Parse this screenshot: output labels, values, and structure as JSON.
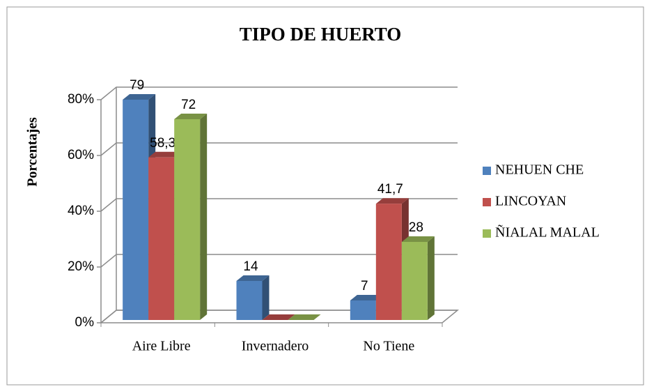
{
  "chart_data": {
    "type": "bar3d",
    "title": "TIPO DE HUERTO",
    "y_label": "Porcentajes",
    "categories": [
      "Aire Libre",
      "Invernadero",
      "No Tiene"
    ],
    "series": [
      {
        "name": "NEHUEN CHE",
        "color": "#4f81bd",
        "values": [
          79,
          14,
          7
        ],
        "value_labels": [
          "79",
          "14",
          "7"
        ]
      },
      {
        "name": "LINCOYAN",
        "color": "#c0504d",
        "values": [
          58.3,
          0,
          41.7
        ],
        "value_labels": [
          "58,3",
          null,
          "41,7"
        ]
      },
      {
        "name": "ÑIALAL MALAL",
        "color": "#9bbb59",
        "values": [
          72,
          0,
          28
        ],
        "value_labels": [
          "72",
          null,
          "28"
        ]
      }
    ],
    "ylim": [
      0,
      80
    ],
    "yticks": [
      {
        "value": 0,
        "label": "0%"
      },
      {
        "value": 20,
        "label": "20%"
      },
      {
        "value": 40,
        "label": "40%"
      },
      {
        "value": 60,
        "label": "60%"
      },
      {
        "value": 80,
        "label": "80%"
      }
    ],
    "grid": true,
    "legend": "right"
  }
}
